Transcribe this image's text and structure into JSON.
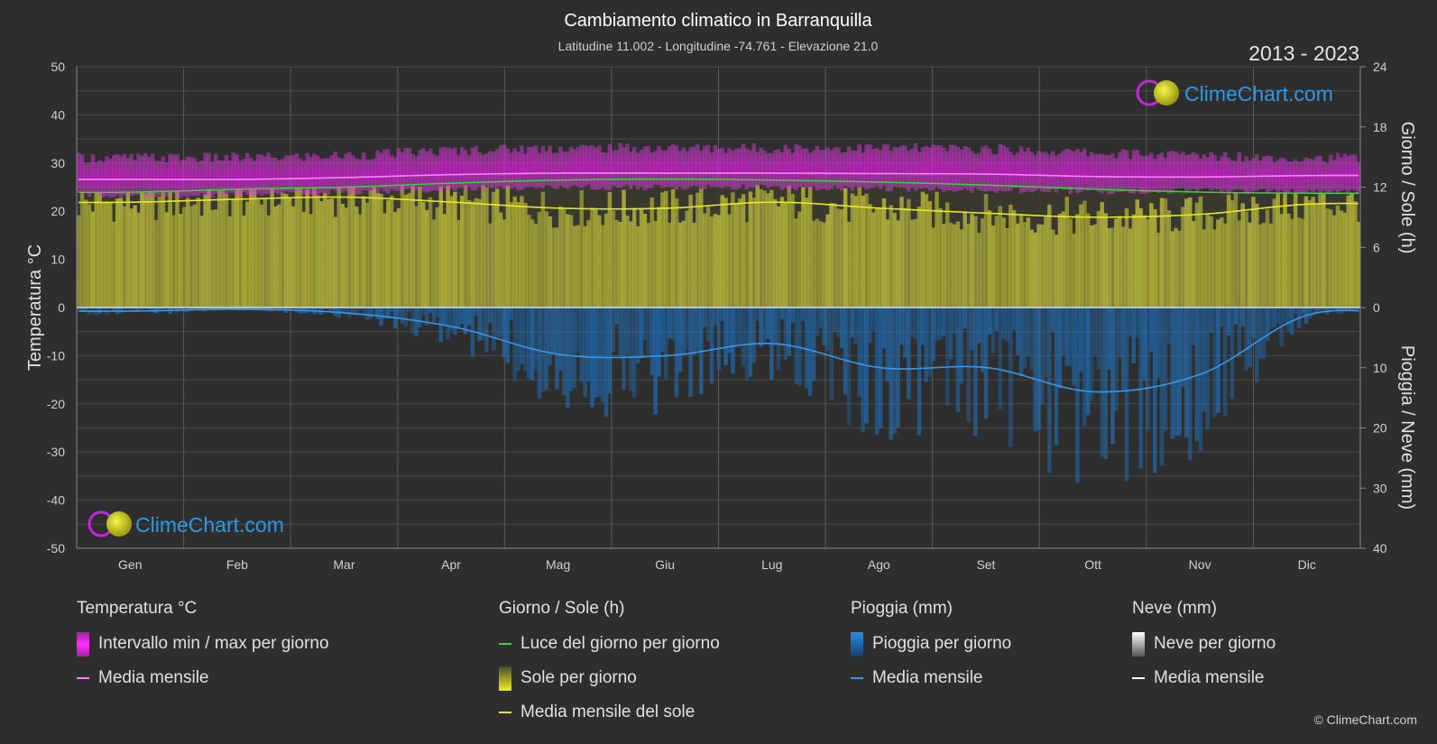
{
  "header": {
    "title": "Cambiamento climatico in Barranquilla",
    "subtitle": "Latitudine 11.002 - Longitudine -74.761 - Elevazione 21.0",
    "year_range": "2013 - 2023"
  },
  "watermark": {
    "text": "ClimeChart.com"
  },
  "colors": {
    "background": "#2e2e2e",
    "temp_range": "#d81fd8",
    "temp_mean": "#ff80ff",
    "daylight": "#3ad33a",
    "sunshine": "#b7b73a",
    "sunshine_mean": "#e8e822",
    "rain": "#1f6fb8",
    "rain_mean": "#3a97e6",
    "snow_mean": "#ffffff"
  },
  "chart_data": {
    "type": "line",
    "xlabel": "",
    "months": [
      "Gen",
      "Feb",
      "Mar",
      "Apr",
      "Mag",
      "Giu",
      "Lug",
      "Ago",
      "Set",
      "Ott",
      "Nov",
      "Dic"
    ],
    "y_left": {
      "label": "Temperatura °C",
      "range": [
        -50,
        50
      ],
      "ticks": [
        50,
        40,
        30,
        20,
        10,
        0,
        -10,
        -20,
        -30,
        -40,
        -50
      ]
    },
    "y_right_top": {
      "label": "Giorno / Sole (h)",
      "range": [
        0,
        24
      ],
      "ticks": [
        24,
        18,
        12,
        6,
        0
      ]
    },
    "y_right_bottom": {
      "label": "Pioggia / Neve (mm)",
      "range": [
        0,
        40
      ],
      "ticks": [
        0,
        10,
        20,
        30,
        40
      ]
    },
    "grid": true,
    "series": [
      {
        "name": "Media mensile",
        "axis": "temperature_c",
        "values": [
          26.6,
          26.6,
          27.0,
          27.6,
          27.9,
          27.9,
          27.9,
          27.8,
          27.7,
          27.2,
          27.1,
          27.4
        ]
      },
      {
        "name": "Intervallo min / max per giorno",
        "axis": "temperature_c",
        "min": [
          24.0,
          24.0,
          24.5,
          25.0,
          25.5,
          25.5,
          25.5,
          25.3,
          25.0,
          24.7,
          24.8,
          24.5
        ],
        "max": [
          30.0,
          30.0,
          30.5,
          31.5,
          32.0,
          32.0,
          32.0,
          32.0,
          31.8,
          31.0,
          30.5,
          30.0
        ]
      },
      {
        "name": "Luce del giorno per giorno",
        "axis": "hours",
        "values": [
          11.5,
          11.8,
          12.0,
          12.4,
          12.7,
          12.8,
          12.7,
          12.5,
          12.2,
          11.8,
          11.5,
          11.4
        ]
      },
      {
        "name": "Media mensile del sole",
        "axis": "hours",
        "values": [
          10.5,
          10.8,
          11.0,
          10.5,
          9.9,
          9.9,
          10.5,
          9.9,
          9.4,
          9.0,
          9.3,
          10.3
        ]
      },
      {
        "name": "Pioggia per giorno",
        "axis": "rain_mm",
        "values": [
          0.6,
          0.3,
          0.9,
          3.2,
          7.8,
          8.0,
          6.0,
          10.0,
          10.0,
          14.0,
          11.0,
          1.2
        ]
      }
    ]
  },
  "legend": {
    "temperature": {
      "title": "Temperatura °C",
      "items": [
        "Intervallo min / max per giorno",
        "Media mensile"
      ]
    },
    "day_sun": {
      "title": "Giorno / Sole (h)",
      "items": [
        "Luce del giorno per giorno",
        "Sole per giorno",
        "Media mensile del sole"
      ]
    },
    "rain": {
      "title": "Pioggia (mm)",
      "items": [
        "Pioggia per giorno",
        "Media mensile"
      ]
    },
    "snow": {
      "title": "Neve (mm)",
      "items": [
        "Neve per giorno",
        "Media mensile"
      ]
    }
  },
  "copyright": "© ClimeChart.com"
}
